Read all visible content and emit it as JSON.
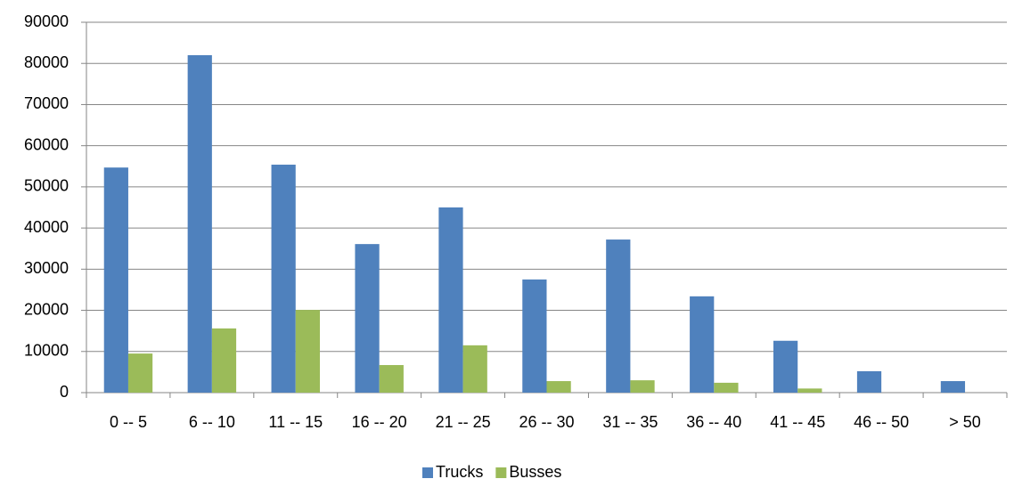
{
  "chart_data": {
    "type": "bar",
    "categories": [
      "0 -- 5",
      "6 -- 10",
      "11 -- 15",
      "16 -- 20",
      "21 -- 25",
      "26 -- 30",
      "31 -- 35",
      "36 -- 40",
      "41 -- 45",
      "46 -- 50",
      "> 50"
    ],
    "series": [
      {
        "name": "Trucks",
        "color": "#4f81bd",
        "values": [
          54700,
          82000,
          55400,
          36100,
          45000,
          27500,
          37200,
          23400,
          12600,
          5200,
          2800
        ]
      },
      {
        "name": "Busses",
        "color": "#9bbb59",
        "values": [
          9500,
          15600,
          20100,
          6700,
          11500,
          2800,
          3000,
          2400,
          1000,
          0,
          0
        ]
      }
    ],
    "ylim": [
      0,
      90000
    ],
    "yticks": [
      0,
      10000,
      20000,
      30000,
      40000,
      50000,
      60000,
      70000,
      80000,
      90000
    ],
    "grid": true,
    "legend": "bottom"
  }
}
